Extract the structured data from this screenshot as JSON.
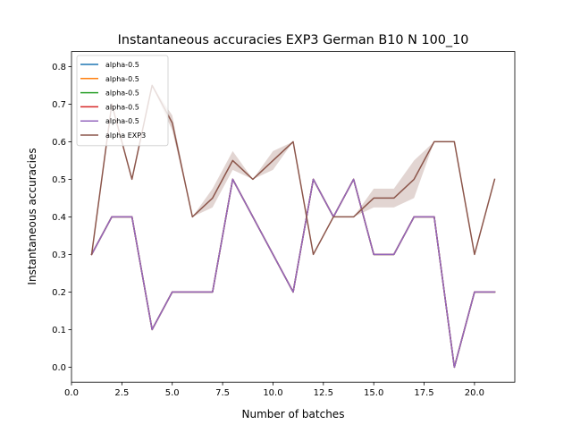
{
  "chart_data": {
    "type": "line",
    "title": "Instantaneous accuracies EXP3 German B10 N 100_10",
    "xlabel": "Number of batches",
    "ylabel": "Instantaneous accuracies",
    "xlim": [
      0.0,
      22.0
    ],
    "ylim": [
      -0.04,
      0.84
    ],
    "xticks": [
      "0.0",
      "2.5",
      "5.0",
      "7.5",
      "10.0",
      "12.5",
      "15.0",
      "17.5",
      "20.0"
    ],
    "xtick_values": [
      0,
      2.5,
      5,
      7.5,
      10,
      12.5,
      15,
      17.5,
      20
    ],
    "yticks": [
      "0.0",
      "0.1",
      "0.2",
      "0.3",
      "0.4",
      "0.5",
      "0.6",
      "0.7",
      "0.8"
    ],
    "ytick_values": [
      0,
      0.1,
      0.2,
      0.3,
      0.4,
      0.5,
      0.6,
      0.7,
      0.8
    ],
    "grid": false,
    "legend_position": "top-left",
    "x": [
      1,
      2,
      3,
      4,
      5,
      6,
      7,
      8,
      9,
      10,
      11,
      12,
      13,
      14,
      15,
      16,
      17,
      18,
      19,
      20,
      21
    ],
    "series": [
      {
        "name": "alpha-0.5",
        "color": "#1f77b4",
        "values": [
          0.3,
          0.4,
          0.4,
          0.1,
          0.2,
          0.2,
          0.2,
          0.5,
          0.4,
          0.3,
          0.2,
          0.5,
          0.4,
          0.5,
          0.3,
          0.3,
          0.4,
          0.4,
          0.0,
          0.2,
          0.2
        ]
      },
      {
        "name": "alpha-0.5",
        "color": "#ff7f0e",
        "values": [
          0.3,
          0.4,
          0.4,
          0.1,
          0.2,
          0.2,
          0.2,
          0.5,
          0.4,
          0.3,
          0.2,
          0.5,
          0.4,
          0.5,
          0.3,
          0.3,
          0.4,
          0.4,
          0.0,
          0.2,
          0.2
        ]
      },
      {
        "name": "alpha-0.5",
        "color": "#2ca02c",
        "values": [
          0.3,
          0.4,
          0.4,
          0.1,
          0.2,
          0.2,
          0.2,
          0.5,
          0.4,
          0.3,
          0.2,
          0.5,
          0.4,
          0.5,
          0.3,
          0.3,
          0.4,
          0.4,
          0.0,
          0.2,
          0.2
        ]
      },
      {
        "name": "alpha-0.5",
        "color": "#d62728",
        "values": [
          0.3,
          0.4,
          0.4,
          0.1,
          0.2,
          0.2,
          0.2,
          0.5,
          0.4,
          0.3,
          0.2,
          0.5,
          0.4,
          0.5,
          0.3,
          0.3,
          0.4,
          0.4,
          0.0,
          0.2,
          0.2
        ]
      },
      {
        "name": "alpha-0.5",
        "color": "#9467bd",
        "values": [
          0.3,
          0.4,
          0.4,
          0.1,
          0.2,
          0.2,
          0.2,
          0.5,
          0.4,
          0.3,
          0.2,
          0.5,
          0.4,
          0.5,
          0.3,
          0.3,
          0.4,
          0.4,
          0.0,
          0.2,
          0.2
        ]
      },
      {
        "name": "alpha EXP3",
        "color": "#8c564b",
        "values": [
          0.3,
          0.7,
          0.5,
          0.75,
          0.65,
          0.4,
          0.45,
          0.55,
          0.5,
          0.55,
          0.6,
          0.3,
          0.4,
          0.4,
          0.45,
          0.45,
          0.5,
          0.6,
          0.6,
          0.3,
          0.5
        ],
        "band_lower": [
          0.3,
          0.7,
          0.5,
          0.75,
          0.63,
          0.4,
          0.425,
          0.525,
          0.5,
          0.525,
          0.6,
          0.3,
          0.4,
          0.4,
          0.425,
          0.425,
          0.45,
          0.6,
          0.6,
          0.3,
          0.5
        ],
        "band_upper": [
          0.3,
          0.7,
          0.5,
          0.75,
          0.67,
          0.4,
          0.475,
          0.575,
          0.5,
          0.575,
          0.6,
          0.3,
          0.4,
          0.4,
          0.475,
          0.475,
          0.55,
          0.6,
          0.6,
          0.3,
          0.5
        ],
        "band_color": "#8c564b"
      }
    ]
  }
}
